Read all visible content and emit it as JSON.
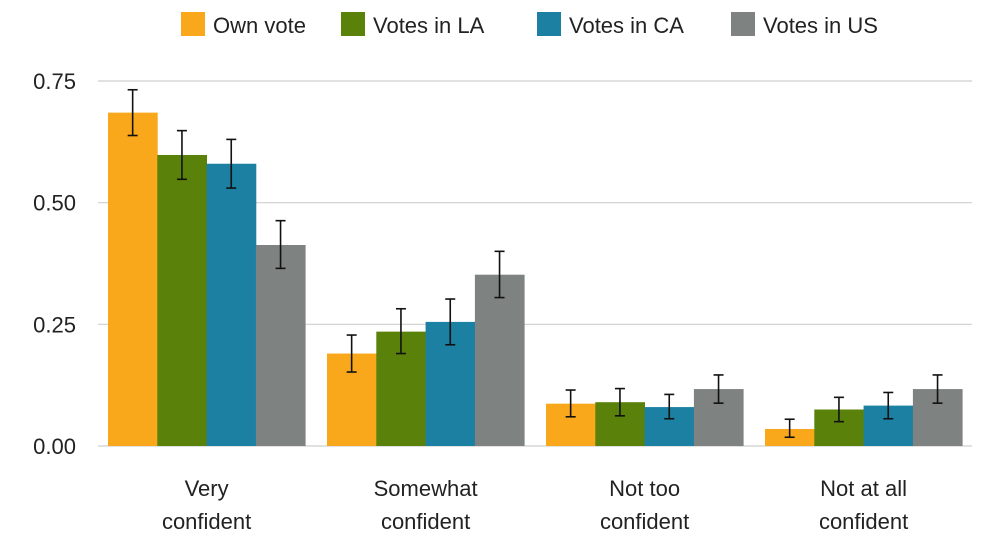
{
  "chart_data": {
    "type": "bar",
    "categories": [
      [
        "Very",
        "confident"
      ],
      [
        "Somewhat",
        "confident"
      ],
      [
        "Not too",
        "confident"
      ],
      [
        "Not at all",
        "confident"
      ]
    ],
    "series": [
      {
        "name": "Own vote",
        "color": "#F9A81B",
        "values": [
          0.685,
          0.19,
          0.087,
          0.035
        ],
        "error_low": [
          0.638,
          0.152,
          0.06,
          0.018
        ],
        "error_high": [
          0.732,
          0.228,
          0.115,
          0.055
        ]
      },
      {
        "name": "Votes in LA",
        "color": "#5A820A",
        "values": [
          0.598,
          0.235,
          0.09,
          0.075
        ],
        "error_low": [
          0.548,
          0.19,
          0.062,
          0.05
        ],
        "error_high": [
          0.648,
          0.282,
          0.118,
          0.1
        ]
      },
      {
        "name": "Votes in CA",
        "color": "#1B80A2",
        "values": [
          0.58,
          0.255,
          0.08,
          0.083
        ],
        "error_low": [
          0.53,
          0.208,
          0.056,
          0.056
        ],
        "error_high": [
          0.63,
          0.302,
          0.106,
          0.11
        ]
      },
      {
        "name": "Votes in US",
        "color": "#7E8381",
        "values": [
          0.413,
          0.352,
          0.117,
          0.117
        ],
        "error_low": [
          0.365,
          0.305,
          0.088,
          0.088
        ],
        "error_high": [
          0.463,
          0.4,
          0.146,
          0.146
        ]
      }
    ],
    "y_ticks": [
      "0.00",
      "0.25",
      "0.50",
      "0.75"
    ],
    "y_tick_values": [
      0,
      0.25,
      0.5,
      0.75
    ],
    "ylim": [
      0,
      0.75
    ],
    "xlabel": "",
    "ylabel": "",
    "title": "",
    "grid": true,
    "legend_position": "top"
  }
}
